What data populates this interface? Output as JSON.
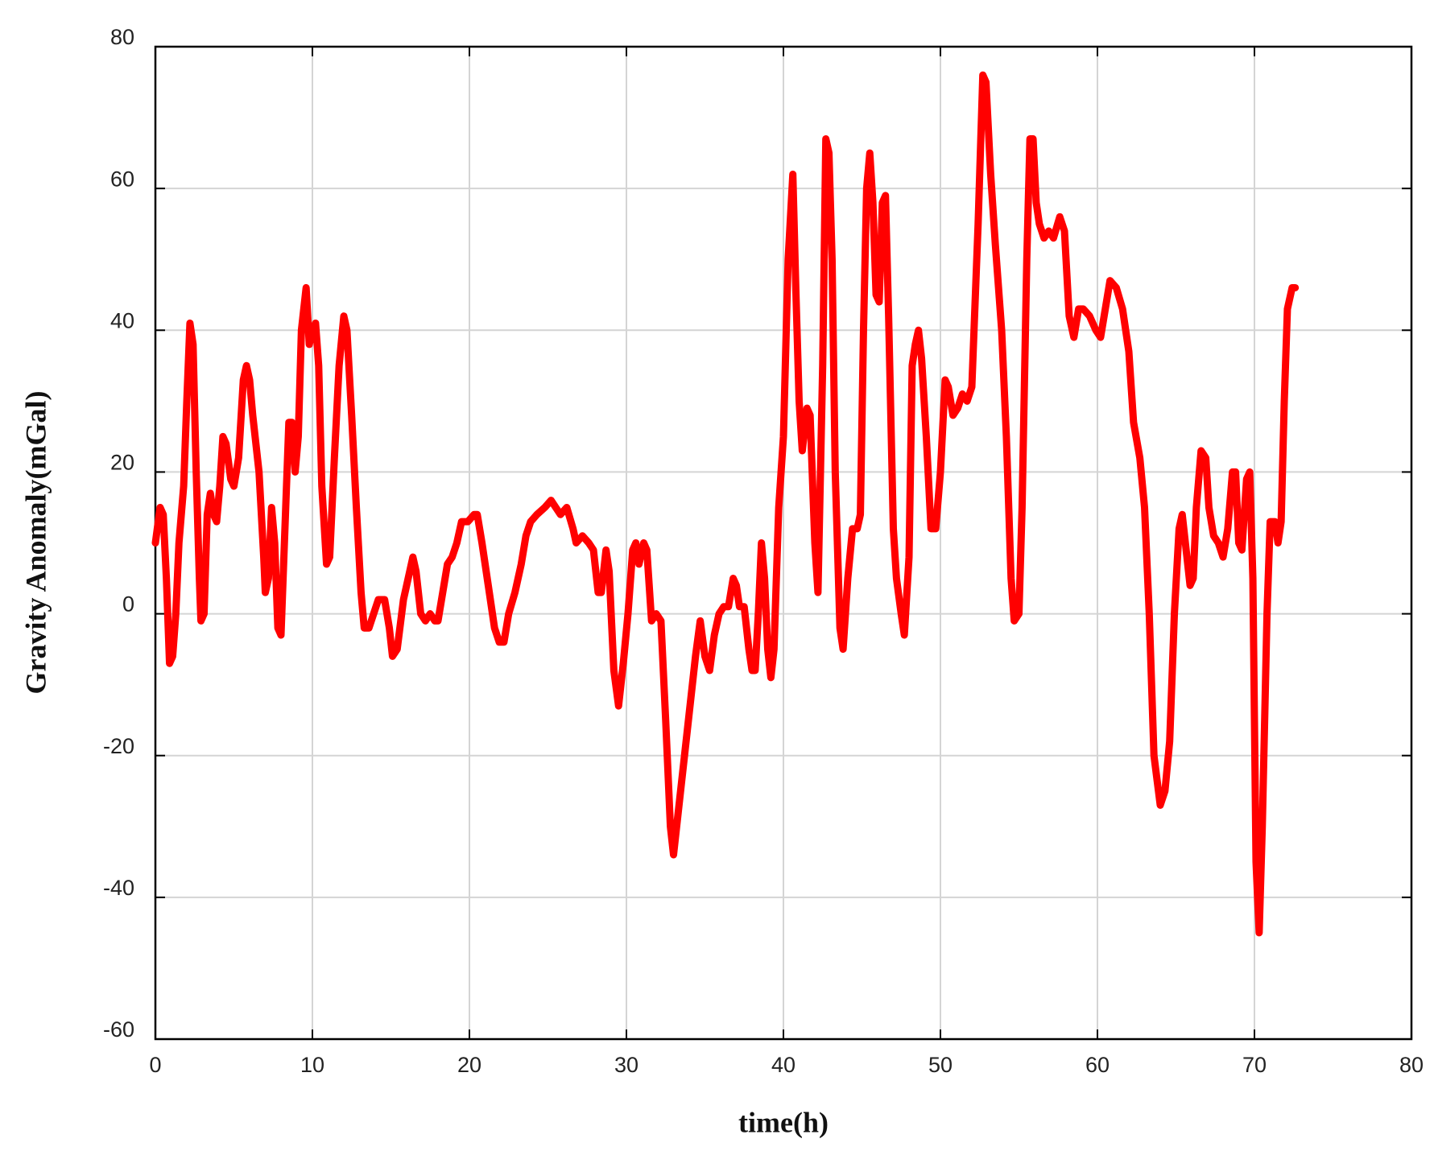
{
  "chart_data": {
    "type": "line",
    "xlabel": "time(h)",
    "ylabel": "Gravity Anomaly(mGal)",
    "color": "#ff0000",
    "grid": true,
    "xlim": [
      0,
      80
    ],
    "xticks": [
      0,
      10,
      20,
      30,
      40,
      50,
      60,
      70,
      80
    ],
    "ylim": [
      -60,
      80
    ],
    "yticks": [
      -60,
      -40,
      -20,
      0,
      20,
      40,
      60,
      80
    ],
    "x": [
      0,
      0.3,
      0.5,
      0.7,
      0.9,
      1.1,
      1.3,
      1.5,
      1.8,
      2.0,
      2.2,
      2.4,
      2.6,
      2.8,
      2.9,
      3.1,
      3.3,
      3.5,
      3.7,
      3.9,
      4.1,
      4.3,
      4.5,
      4.8,
      5.0,
      5.3,
      5.6,
      5.8,
      6.0,
      6.2,
      6.6,
      6.9,
      7.0,
      7.2,
      7.4,
      7.6,
      7.8,
      8.0,
      8.3,
      8.5,
      8.7,
      8.9,
      9.1,
      9.3,
      9.6,
      9.8,
      10.0,
      10.2,
      10.4,
      10.6,
      10.9,
      11.1,
      11.4,
      11.7,
      12.0,
      12.2,
      12.5,
      12.8,
      13.1,
      13.3,
      13.6,
      13.9,
      14.2,
      14.6,
      14.9,
      15.1,
      15.4,
      15.8,
      16.2,
      16.4,
      16.6,
      16.9,
      17.2,
      17.5,
      17.8,
      18.0,
      18.3,
      18.6,
      18.9,
      19.2,
      19.5,
      19.9,
      20.3,
      20.5,
      20.8,
      21.2,
      21.6,
      21.9,
      22.2,
      22.5,
      22.9,
      23.3,
      23.6,
      23.9,
      24.3,
      24.8,
      25.2,
      25.5,
      25.8,
      26.2,
      26.6,
      26.8,
      27.2,
      27.6,
      27.9,
      28.2,
      28.4,
      28.7,
      28.9,
      29.2,
      29.5,
      29.8,
      30.1,
      30.4,
      30.6,
      30.8,
      31.1,
      31.3,
      31.6,
      31.9,
      32.2,
      32.5,
      32.8,
      33.0,
      33.3,
      33.7,
      34.1,
      34.4,
      34.7,
      35.0,
      35.3,
      35.6,
      35.9,
      36.2,
      36.5,
      36.8,
      37.0,
      37.2,
      37.5,
      37.8,
      38.0,
      38.2,
      38.4,
      38.6,
      38.8,
      39.0,
      39.2,
      39.4,
      39.7,
      40.0,
      40.3,
      40.6,
      40.8,
      41.0,
      41.2,
      41.5,
      41.7,
      42.0,
      42.2,
      42.5,
      42.7,
      42.9,
      43.1,
      43.3,
      43.6,
      43.8,
      44.1,
      44.4,
      44.7,
      44.9,
      45.1,
      45.3,
      45.5,
      45.7,
      45.9,
      46.1,
      46.3,
      46.5,
      46.7,
      47.0,
      47.2,
      47.5,
      47.7,
      48.0,
      48.2,
      48.4,
      48.6,
      48.8,
      49.1,
      49.4,
      49.7,
      50.0,
      50.3,
      50.5,
      50.8,
      51.1,
      51.4,
      51.7,
      52.0,
      52.4,
      52.7,
      52.9,
      53.2,
      53.5,
      53.9,
      54.2,
      54.5,
      54.7,
      55.0,
      55.2,
      55.5,
      55.7,
      55.9,
      56.1,
      56.3,
      56.6,
      56.9,
      57.2,
      57.6,
      57.9,
      58.2,
      58.5,
      58.8,
      59.1,
      59.5,
      59.9,
      60.2,
      60.5,
      60.8,
      61.2,
      61.6,
      62.0,
      62.3,
      62.7,
      63.0,
      63.3,
      63.6,
      64.0,
      64.3,
      64.6,
      64.9,
      65.2,
      65.4,
      65.6,
      65.9,
      66.1,
      66.3,
      66.6,
      66.9,
      67.1,
      67.4,
      67.7,
      68.0,
      68.3,
      68.6,
      68.8,
      69.0,
      69.2,
      69.5,
      69.7,
      69.9,
      70.1,
      70.3,
      70.5,
      70.8,
      71.0,
      71.3,
      71.5,
      71.7,
      71.9,
      72.1,
      72.4,
      72.6
    ],
    "values": [
      10,
      15,
      14,
      5,
      -7,
      -6,
      0,
      10,
      18,
      30,
      41,
      38,
      20,
      5,
      -1,
      0,
      14,
      17,
      14,
      13,
      18,
      25,
      24,
      19,
      18,
      22,
      33,
      35,
      33,
      28,
      20,
      8,
      3,
      5,
      15,
      10,
      -2,
      -3,
      15,
      27,
      27,
      20,
      25,
      40,
      46,
      38,
      40,
      41,
      35,
      18,
      7,
      8,
      22,
      35,
      42,
      40,
      28,
      15,
      3,
      -2,
      -2,
      0,
      2,
      2,
      -2,
      -6,
      -5,
      2,
      6,
      8,
      6,
      0,
      -1,
      0,
      -1,
      -1,
      3,
      7,
      8,
      10,
      13,
      13,
      14,
      14,
      10,
      4,
      -2,
      -4,
      -4,
      0,
      3,
      7,
      11,
      13,
      14,
      15,
      16,
      15,
      14,
      15,
      12,
      10,
      11,
      10,
      9,
      3,
      3,
      9,
      6,
      -8,
      -13,
      -7,
      0,
      9,
      10,
      7,
      10,
      9,
      -1,
      0,
      -1,
      -15,
      -30,
      -34,
      -28,
      -20,
      -12,
      -6,
      -1,
      -6,
      -8,
      -3,
      0,
      1,
      1,
      5,
      4,
      1,
      1,
      -5,
      -8,
      -8,
      0,
      10,
      5,
      -5,
      -9,
      -5,
      15,
      25,
      50,
      62,
      45,
      30,
      23,
      29,
      28,
      10,
      3,
      35,
      67,
      65,
      50,
      20,
      -2,
      -5,
      5,
      12,
      12,
      14,
      40,
      60,
      65,
      58,
      45,
      44,
      58,
      59,
      42,
      12,
      5,
      0,
      -3,
      8,
      35,
      38,
      40,
      36,
      25,
      12,
      12,
      20,
      33,
      32,
      28,
      29,
      31,
      30,
      32,
      55,
      76,
      75,
      62,
      52,
      40,
      25,
      5,
      -1,
      0,
      15,
      50,
      67,
      67,
      58,
      55,
      53,
      54,
      53,
      56,
      54,
      42,
      39,
      43,
      43,
      42,
      40,
      39,
      43,
      47,
      46,
      43,
      37,
      27,
      22,
      15,
      0,
      -20,
      -27,
      -25,
      -18,
      0,
      12,
      14,
      10,
      4,
      5,
      15,
      23,
      22,
      15,
      11,
      10,
      8,
      12,
      20,
      20,
      10,
      9,
      19,
      20,
      5,
      -35,
      -45,
      -30,
      0,
      13,
      13,
      10,
      13,
      30,
      43,
      46,
      46
    ]
  }
}
